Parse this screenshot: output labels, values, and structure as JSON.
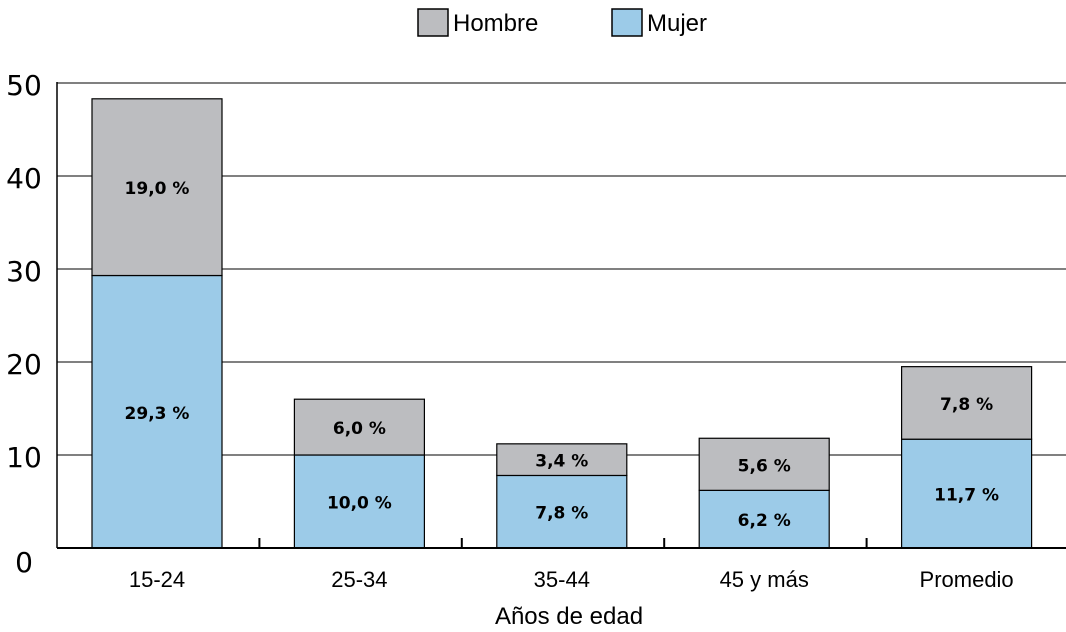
{
  "chart_data": {
    "type": "bar",
    "stacked": true,
    "categories": [
      "15-24",
      "25-34",
      "35-44",
      "45 y más",
      "Promedio"
    ],
    "series": [
      {
        "name": "Mujer",
        "color": "#9ccbe8",
        "values": [
          29.3,
          10.0,
          7.8,
          6.2,
          11.7
        ],
        "labels": [
          "29,3 %",
          "10,0 %",
          "7,8 %",
          "6,2 %",
          "11,7 %"
        ]
      },
      {
        "name": "Hombre",
        "color": "#bcbdc0",
        "values": [
          19.0,
          6.0,
          3.4,
          5.6,
          7.8
        ],
        "labels": [
          "19,0 %",
          "6,0 %",
          "3,4 %",
          "5,6 %",
          "7,8 %"
        ]
      }
    ],
    "legend_order": [
      "Hombre",
      "Mujer"
    ],
    "legend_position": "top-center",
    "xlabel": "Años de edad",
    "ylabel": "",
    "ylim": [
      0,
      50
    ],
    "yticks": [
      0,
      10,
      20,
      30,
      40,
      50
    ],
    "grid": true
  }
}
